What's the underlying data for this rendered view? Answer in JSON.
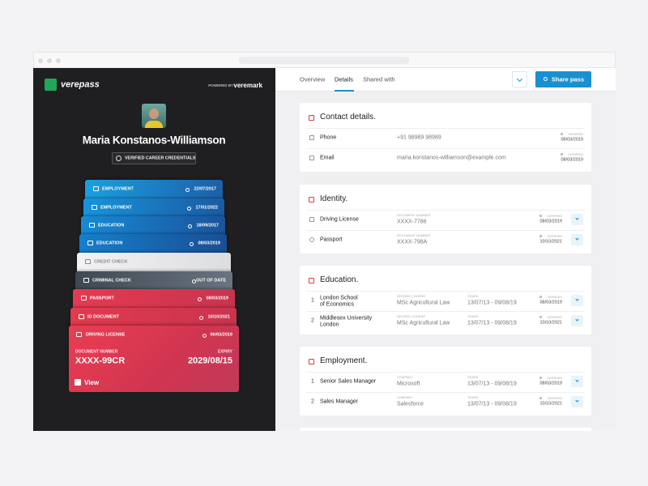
{
  "brand": {
    "name": "verepass",
    "powered_by": "POWERED BY",
    "partner": "veremark"
  },
  "profile": {
    "name": "Maria Konstanos-Williamson",
    "badge": "VERIFIED CAREER CREDENTIALS"
  },
  "pass_cards": [
    {
      "label": "EMPLOYMENT",
      "date": "22/07/2017"
    },
    {
      "label": "EMPLOYMENT",
      "date": "17/01/2022"
    },
    {
      "label": "EDUCATION",
      "date": "18/09/2017"
    },
    {
      "label": "EDUCATION",
      "date": "08/03/2019"
    },
    {
      "label": "CREDIT CHECK"
    },
    {
      "label": "CRIMINAL CHECK",
      "status": "OUT OF DATE"
    },
    {
      "label": "PASSPORT",
      "date": "08/03/2019"
    },
    {
      "label": "ID DOCUMENT",
      "date": "10/10/2021"
    }
  ],
  "featured_card": {
    "label": "DRIVING LICENSE",
    "date": "06/03/2019",
    "number_label": "DOCUMENT NUMBER",
    "number": "XXXX-99CR",
    "expiry_label": "EXPIRY",
    "expiry": "2029/08/15",
    "action": "View"
  },
  "tabs": [
    "Overview",
    "Details",
    "Shared with"
  ],
  "share_button": "Share pass",
  "sections": [
    {
      "title": "Contact details.",
      "rows": [
        {
          "label": "Phone",
          "fields": [
            {
              "value": "+91 98989 98989"
            }
          ],
          "verified_label": "VERIFIED",
          "verified_date": "08/03/2019"
        },
        {
          "label": "Email",
          "fields": [
            {
              "value": "maria.konstanos-williamson@example.com"
            }
          ],
          "verified_label": "VERIFIED",
          "verified_date": "08/03/2019"
        }
      ]
    },
    {
      "title": "Identity.",
      "rows": [
        {
          "label": "Driving License",
          "fields": [
            {
              "label": "DOCUMENT NUMBER",
              "value": "XXXX-7786"
            }
          ],
          "verified_label": "VERIFIED",
          "verified_date": "08/03/2019"
        },
        {
          "label": "Passport",
          "fields": [
            {
              "label": "DOCUMENT NUMBER",
              "value": "XXXX-798A"
            }
          ],
          "verified_label": "VERIFIED",
          "verified_date": "10/10/2021"
        }
      ]
    },
    {
      "title": "Education.",
      "rows": [
        {
          "index": "1",
          "label_lines": [
            "London School",
            "of Economics"
          ],
          "fields": [
            {
              "label": "DEGREE COURSE",
              "value": "MSc Agricultural Law"
            },
            {
              "label": "YEARS",
              "value": "13/07/13 - 09/08/19"
            }
          ],
          "verified_label": "VERIFIED",
          "verified_date": "08/03/2019"
        },
        {
          "index": "2",
          "label_lines": [
            "Middlesex University",
            "London"
          ],
          "fields": [
            {
              "label": "DEGREE COURSE",
              "value": "MSc Agricultural Law"
            },
            {
              "label": "YEARS",
              "value": "13/07/13 - 09/08/19"
            }
          ],
          "verified_label": "VERIFIED",
          "verified_date": "10/10/2021"
        }
      ]
    },
    {
      "title": "Employment.",
      "rows": [
        {
          "index": "1",
          "label": "Senior Sales Manager",
          "fields": [
            {
              "label": "COMPANY",
              "value": "Microsoft"
            },
            {
              "label": "YEARS",
              "value": "13/07/13 - 09/08/19"
            }
          ],
          "verified_label": "VERIFIED",
          "verified_date": "08/03/2019"
        },
        {
          "index": "2",
          "label": "Sales Manager",
          "fields": [
            {
              "label": "COMPANY",
              "value": "Salesforce"
            },
            {
              "label": "YEARS",
              "value": "13/07/13 - 09/08/19"
            }
          ],
          "verified_label": "VERIFIED",
          "verified_date": "10/10/2021"
        }
      ]
    }
  ]
}
